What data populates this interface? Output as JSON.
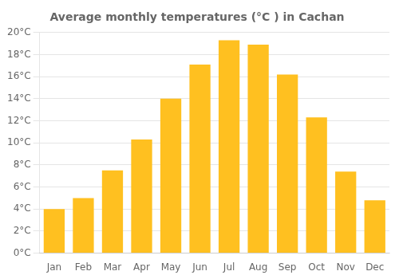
{
  "chart_data": {
    "type": "bar",
    "title": "Average monthly temperatures (°C ) in Cachan",
    "categories": [
      "Jan",
      "Feb",
      "Mar",
      "Apr",
      "May",
      "Jun",
      "Jul",
      "Aug",
      "Sep",
      "Oct",
      "Nov",
      "Dec"
    ],
    "values": [
      4.0,
      5.0,
      7.5,
      10.3,
      14.0,
      17.1,
      19.3,
      18.9,
      16.2,
      12.3,
      7.4,
      4.8
    ],
    "color": "#FFC020",
    "ylim": [
      0,
      20
    ],
    "yticks": [
      {
        "value": 0,
        "label": "0°C"
      },
      {
        "value": 2,
        "label": "2°C"
      },
      {
        "value": 4,
        "label": "4°C"
      },
      {
        "value": 6,
        "label": "6°C"
      },
      {
        "value": 8,
        "label": "8°C"
      },
      {
        "value": 10,
        "label": "10°C"
      },
      {
        "value": 12,
        "label": "12°C"
      },
      {
        "value": 14,
        "label": "14°C"
      },
      {
        "value": 16,
        "label": "16°C"
      },
      {
        "value": 18,
        "label": "18°C"
      },
      {
        "value": 20,
        "label": "20°C"
      }
    ],
    "grid": true
  }
}
